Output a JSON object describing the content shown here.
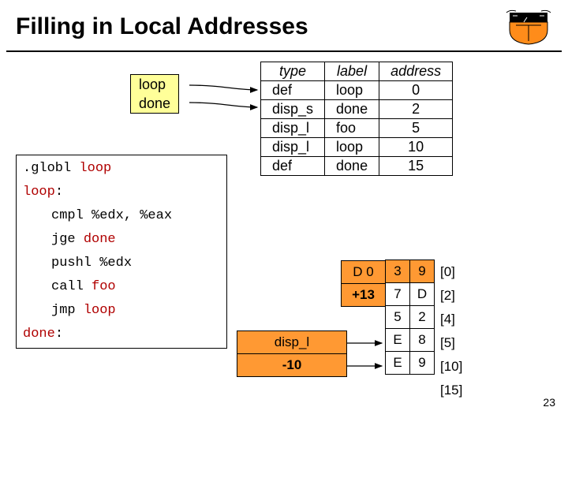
{
  "title": "Filling in Local Addresses",
  "ld_box": [
    "loop",
    "done"
  ],
  "tla": {
    "headers": [
      "type",
      "label",
      "address"
    ],
    "rows": [
      [
        "def",
        "loop",
        "0"
      ],
      [
        "disp_s",
        "done",
        "2"
      ],
      [
        "disp_l",
        "foo",
        "5"
      ],
      [
        "disp_l",
        "loop",
        "10"
      ],
      [
        "def",
        "done",
        "15"
      ]
    ]
  },
  "code": {
    "lines": [
      {
        "text": ".globl loop",
        "indent": false,
        "red": "loop"
      },
      {
        "text": "loop:",
        "indent": false,
        "red": "loop"
      },
      {
        "text": "cmpl %edx, %eax",
        "indent": true
      },
      {
        "text": "jge done",
        "indent": true,
        "red": "done"
      },
      {
        "text": "pushl %edx",
        "indent": true
      },
      {
        "text": "call foo",
        "indent": true,
        "red": "foo"
      },
      {
        "text": "jmp loop",
        "indent": true,
        "red": "loop"
      },
      {
        "text": "done:",
        "indent": false,
        "red": "done"
      }
    ]
  },
  "mid": {
    "top": "disp_l",
    "bot": "-10"
  },
  "d0": "D 0",
  "p13": "+13",
  "bytes_col1": [
    {
      "v": "3",
      "orange": true
    },
    {
      "v": "7",
      "orange": false
    },
    {
      "v": "5",
      "orange": false
    },
    {
      "v": "E",
      "orange": false
    },
    {
      "v": "E",
      "orange": false
    }
  ],
  "bytes_col2": [
    {
      "v": "9",
      "orange": true
    },
    {
      "v": "D",
      "orange": false
    },
    {
      "v": "2",
      "orange": false
    },
    {
      "v": "8",
      "orange": false
    },
    {
      "v": "9",
      "orange": false
    }
  ],
  "offsets": [
    "[0]",
    "[2]",
    "[4]",
    "[5]",
    "[10]",
    "[15]"
  ],
  "colors": {
    "yellow": "#ffff99",
    "orange": "#ff9933",
    "red": "#b00000"
  },
  "pagenum": "23"
}
